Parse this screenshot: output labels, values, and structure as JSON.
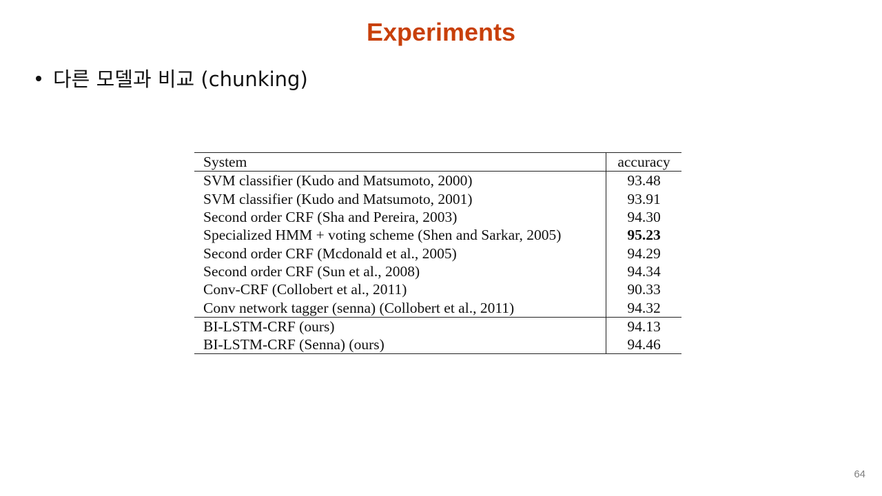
{
  "slide": {
    "title": "Experiments",
    "bullet": "다른 모델과 비교 (chunking)",
    "page_number": "64"
  },
  "table": {
    "headers": {
      "system": "System",
      "accuracy": "accuracy"
    },
    "rows": [
      {
        "system": "SVM classifier (Kudo and Matsumoto, 2000)",
        "accuracy": "93.48"
      },
      {
        "system": "SVM classifier (Kudo and Matsumoto, 2001)",
        "accuracy": "93.91"
      },
      {
        "system": "Second order CRF (Sha and Pereira, 2003)",
        "accuracy": "94.30"
      },
      {
        "system": "Specialized HMM + voting scheme (Shen and Sarkar, 2005)",
        "accuracy": "95.23"
      },
      {
        "system": "Second order CRF (Mcdonald et al., 2005)",
        "accuracy": "94.29"
      },
      {
        "system": "Second order CRF (Sun et al., 2008)",
        "accuracy": "94.34"
      },
      {
        "system": "Conv-CRF (Collobert et al., 2011)",
        "accuracy": "90.33"
      },
      {
        "system": "Conv network tagger (senna) (Collobert et al., 2011)",
        "accuracy": "94.32"
      },
      {
        "system": "BI-LSTM-CRF (ours)",
        "accuracy": "94.13"
      },
      {
        "system": "BI-LSTM-CRF (Senna) (ours)",
        "accuracy": "94.46"
      }
    ]
  },
  "colors": {
    "title": "#c8400a",
    "text": "#111111",
    "page_number": "#7f7f7f"
  }
}
